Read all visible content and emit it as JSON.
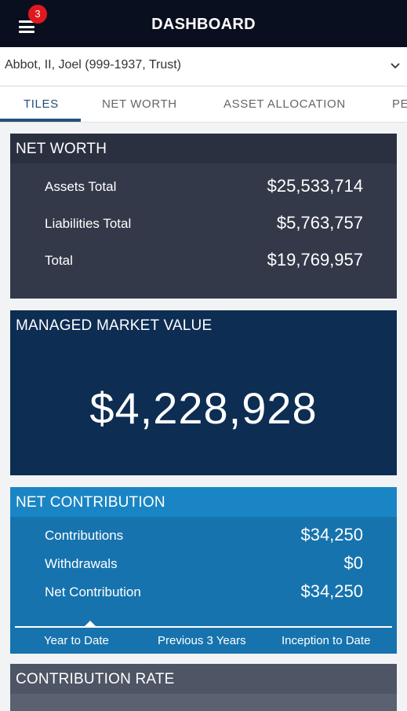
{
  "header": {
    "title": "DASHBOARD",
    "notification_count": "3"
  },
  "account": {
    "selected": "Abbot, II, Joel (999-1937, Trust)"
  },
  "tabs": [
    {
      "label": "TILES",
      "active": true
    },
    {
      "label": "NET WORTH",
      "active": false
    },
    {
      "label": "ASSET ALLOCATION",
      "active": false
    },
    {
      "label": "PE",
      "active": false
    }
  ],
  "net_worth": {
    "title": "NET WORTH",
    "rows": [
      {
        "label": "Assets Total",
        "value": "$25,533,714"
      },
      {
        "label": "Liabilities Total",
        "value": "$5,763,757"
      },
      {
        "label": "Total",
        "value": "$19,769,957"
      }
    ]
  },
  "managed_market_value": {
    "title": "MANAGED MARKET VALUE",
    "value": "$4,228,928"
  },
  "net_contribution": {
    "title": "NET CONTRIBUTION",
    "rows": [
      {
        "label": "Contributions",
        "value": "$34,250"
      },
      {
        "label": "Withdrawals",
        "value": "$0"
      },
      {
        "label": "Net Contribution",
        "value": "$34,250"
      }
    ],
    "periods": [
      "Year to Date",
      "Previous 3 Years",
      "Inception to Date"
    ],
    "selected_period": "Year to Date"
  },
  "contribution_rate": {
    "title": "CONTRIBUTION RATE"
  },
  "colors": {
    "topbar": "#0a0f1f",
    "net_worth_card": "#333949",
    "managed_market_value_card": "#0d2d53",
    "net_contribution_card": "#1673ae",
    "contribution_rate_card": "#5a6171",
    "badge": "#e0191f"
  }
}
